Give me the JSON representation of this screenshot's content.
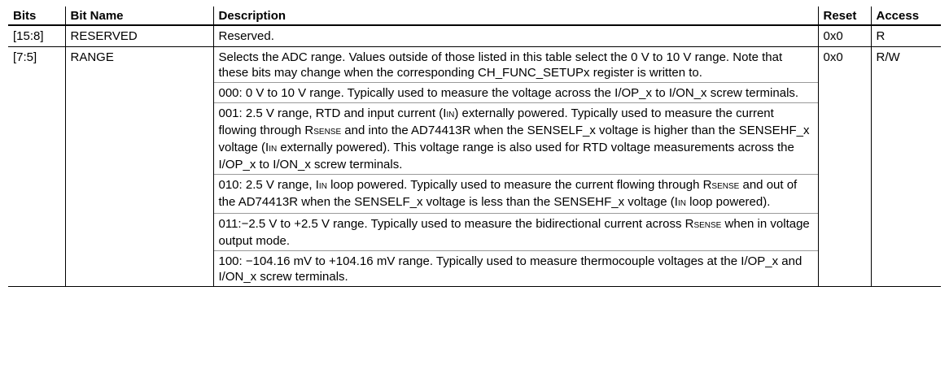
{
  "table": {
    "header": [
      "Bits",
      "Bit Name",
      "Description",
      "Reset",
      "Access"
    ],
    "rows": [
      {
        "bits": "[15:8]",
        "name": "RESERVED",
        "description": [
          [
            "Reserved."
          ]
        ],
        "reset": "0x0",
        "access": "R"
      },
      {
        "bits": "[7:5]",
        "name": "RANGE",
        "description": [
          [
            "Selects the ADC range. Values outside of those listed in this table select the 0 V to 10 V range. Note that these bits may change when the corresponding CH_FUNC_SETUPx register is written to."
          ],
          [
            "000: 0 V to 10 V range. Typically used to measure the voltage across the I/OP_x to I/ON_x screw terminals."
          ],
          [
            "001: 2.5 V range, RTD and input current (I",
            {
              "sub": "IN"
            },
            ") externally powered. Typically used to measure the current flowing through R",
            {
              "sub": "SENSE"
            },
            " and into the AD74413R when the SENSELF_x voltage is higher than the SENSEHF_x voltage (I",
            {
              "sub": "IN"
            },
            " externally powered). This voltage range is also used for RTD voltage measurements across the I/OP_x to I/ON_x screw terminals."
          ],
          [
            "010: 2.5 V range, I",
            {
              "sub": "IN"
            },
            " loop powered. Typically used to measure the current flowing through R",
            {
              "sub": "SENSE"
            },
            " and out of the AD74413R when the SENSELF_x voltage is less than the SENSEHF_x voltage (I",
            {
              "sub": "IN"
            },
            " loop powered)."
          ],
          [
            "011:−2.5 V to +2.5 V range. Typically used to measure the bidirectional current across R",
            {
              "sub": "SENSE"
            },
            " when in voltage output mode."
          ],
          [
            "100: −104.16 mV to +104.16 mV range. Typically used to measure thermocouple voltages at the I/OP_x and I/ON_x screw terminals."
          ]
        ],
        "reset": "0x0",
        "access": "R/W"
      }
    ]
  }
}
